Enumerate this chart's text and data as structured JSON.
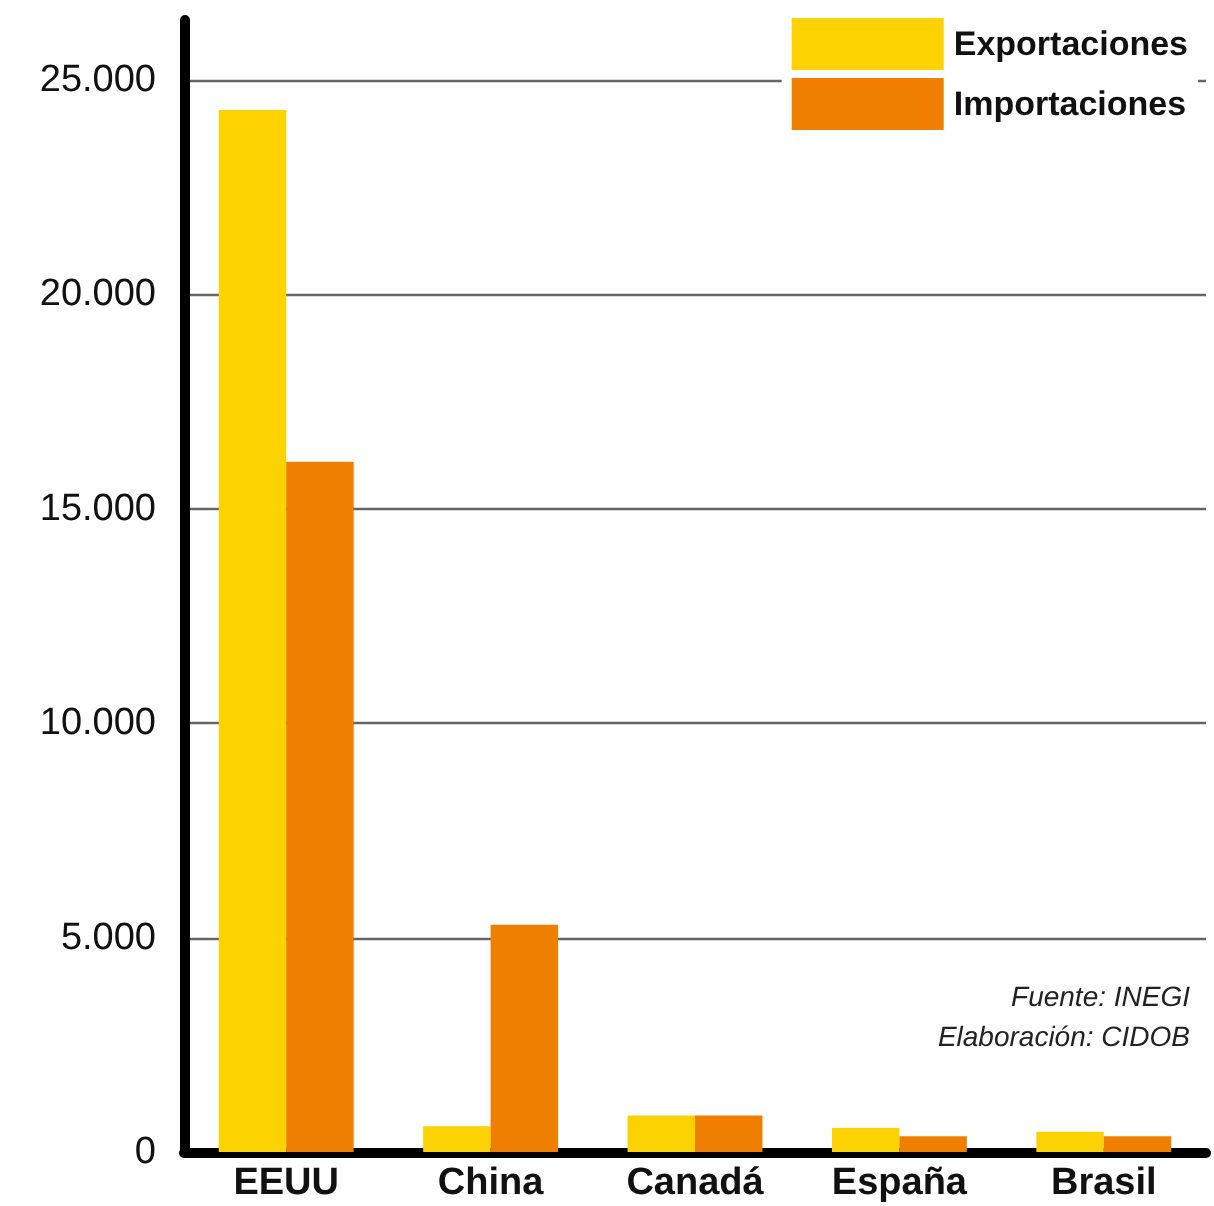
{
  "chart_data": {
    "type": "bar",
    "categories": [
      "EEUU",
      "China",
      "Canadá",
      "España",
      "Brasil"
    ],
    "series": [
      {
        "name": "Exportaciones",
        "color": "#fcd200",
        "values": [
          24300,
          600,
          850,
          560,
          470
        ]
      },
      {
        "name": "Importaciones",
        "color": "#ee7f00",
        "values": [
          16100,
          5300,
          850,
          370,
          370
        ]
      }
    ],
    "ylim": [
      0,
      26400
    ],
    "yticks": [
      0,
      {
        "value": 5000,
        "label": "5.000"
      },
      {
        "value": 10000,
        "label": "10.000"
      },
      {
        "value": 15000,
        "label": "15.000"
      },
      {
        "value": 20000,
        "label": "20.000"
      },
      {
        "value": 25000,
        "label": "25.000"
      }
    ],
    "grid": "y",
    "legend": "top right",
    "annotations": [
      "Fuente: INEGI",
      "Elaboración: CIDOB"
    ]
  }
}
